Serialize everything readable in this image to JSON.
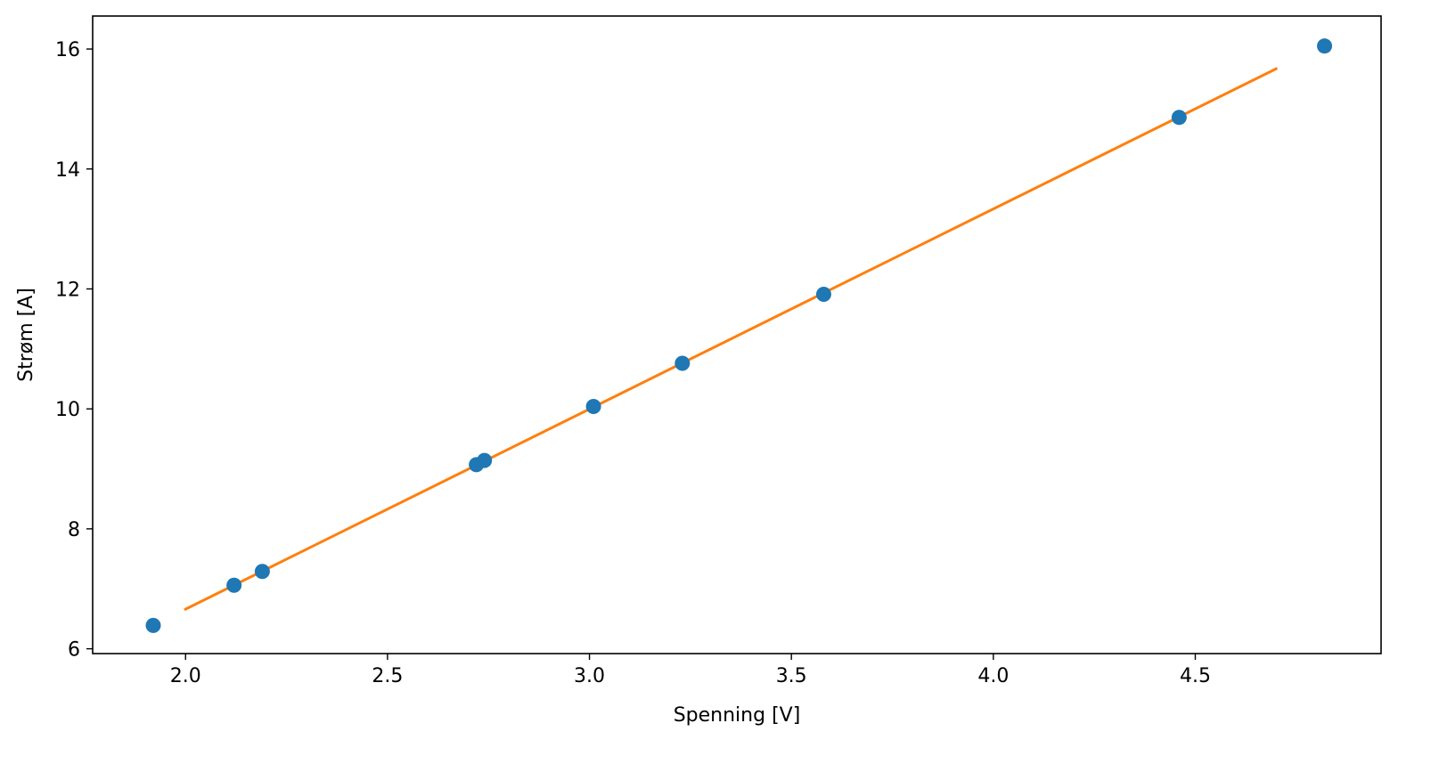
{
  "chart_data": {
    "type": "scatter",
    "title": "",
    "xlabel": "Spenning [V]",
    "ylabel": "Strøm [A]",
    "xlim": [
      1.77,
      4.96
    ],
    "ylim": [
      5.92,
      16.55
    ],
    "xticks": [
      2.0,
      2.5,
      3.0,
      3.5,
      4.0,
      4.5
    ],
    "xtick_labels": [
      "2.0",
      "2.5",
      "3.0",
      "3.5",
      "4.0",
      "4.5"
    ],
    "yticks": [
      6,
      8,
      10,
      12,
      14,
      16
    ],
    "ytick_labels": [
      "6",
      "8",
      "10",
      "12",
      "14",
      "16"
    ],
    "grid": false,
    "legend": false,
    "series": [
      {
        "kind": "scatter",
        "color": "#1f77b4",
        "x": [
          1.92,
          2.12,
          2.19,
          2.72,
          2.74,
          3.01,
          3.23,
          3.58,
          4.46,
          4.82
        ],
        "y": [
          6.39,
          7.06,
          7.29,
          9.07,
          9.14,
          10.04,
          10.76,
          11.91,
          14.86,
          16.05
        ]
      },
      {
        "kind": "line",
        "color": "#ff7f0e",
        "x": [
          2.0,
          4.7
        ],
        "y": [
          6.66,
          15.67
        ]
      }
    ]
  }
}
